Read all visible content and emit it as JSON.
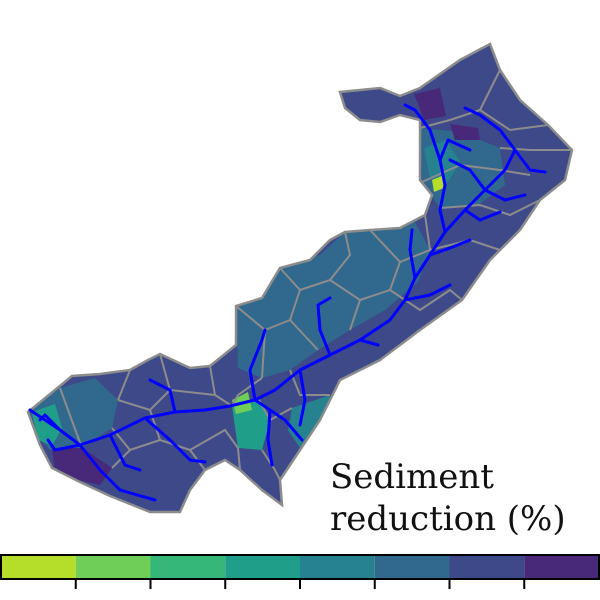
{
  "legend": {
    "title_line1": "Sediment",
    "title_line2": "reduction (%)",
    "classes": 8,
    "colors": [
      "#b5de2b",
      "#6ece58",
      "#35b779",
      "#1f9e89",
      "#26828e",
      "#31688e",
      "#3e4989",
      "#482878"
    ]
  },
  "colors": {
    "river": "#0000ff",
    "boundary": "#8c8c8c",
    "background": "#ffffff"
  }
}
